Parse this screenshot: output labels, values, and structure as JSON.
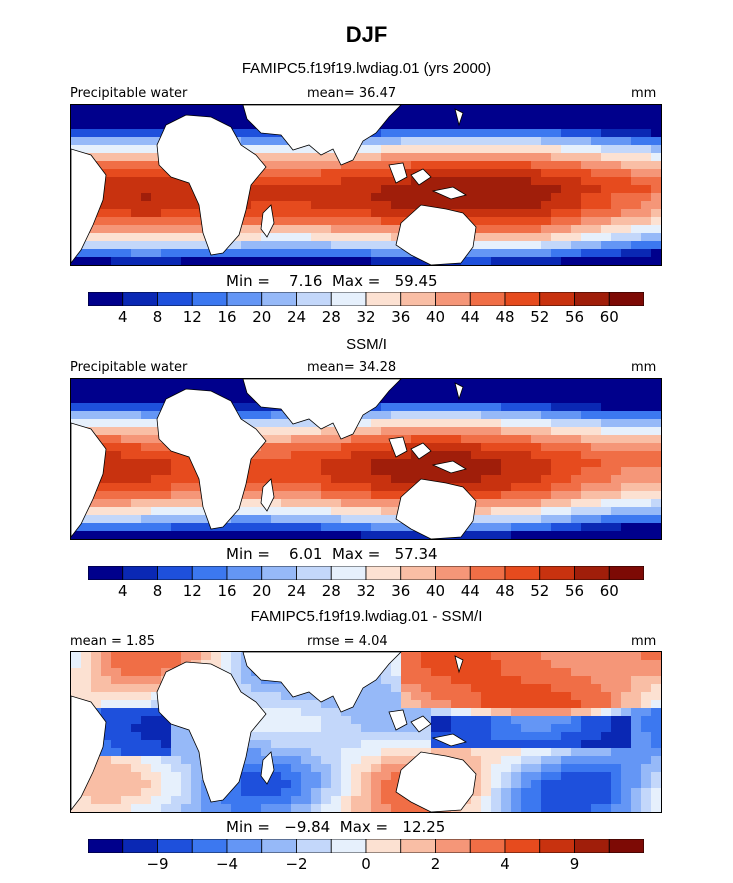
{
  "title": "DJF",
  "colors": {
    "palette": [
      "#00008c",
      "#0a28b4",
      "#1e50dc",
      "#3c78f0",
      "#6496f5",
      "#96b9f8",
      "#c3d7fa",
      "#e6f0fc",
      "#fce1d2",
      "#f9bea5",
      "#f59678",
      "#f06e46",
      "#e64b1e",
      "#c8320f",
      "#a01e0a",
      "#7d0a05"
    ],
    "land": "#ffffff",
    "coast": "#000000"
  },
  "chart_data": [
    {
      "type": "heatmap",
      "name": "model-precipitable-water",
      "subtitle": "FAMIPC5.f19f19.lwdiag.01 (yrs 2000)",
      "left_label": "Precipitable water",
      "center_label": "mean=  36.47",
      "units": "mm",
      "stats": "Min =    7.16  Max =   59.45",
      "colorbar_ticks": [
        "4",
        "8",
        "12",
        "16",
        "20",
        "24",
        "28",
        "32",
        "36",
        "40",
        "44",
        "48",
        "52",
        "56",
        "60"
      ],
      "field": {
        "mean": 36.47,
        "min": 7.16,
        "max": 59.45
      },
      "value_range": [
        4,
        60
      ]
    },
    {
      "type": "heatmap",
      "name": "obs-precipitable-water",
      "subtitle": "SSM/I",
      "left_label": "Precipitable water",
      "center_label": "mean=  34.28",
      "units": "mm",
      "stats": "Min =    6.01  Max =   57.34",
      "colorbar_ticks": [
        "4",
        "8",
        "12",
        "16",
        "20",
        "24",
        "28",
        "32",
        "36",
        "40",
        "44",
        "48",
        "52",
        "56",
        "60"
      ],
      "field": {
        "mean": 34.28,
        "min": 6.01,
        "max": 57.34
      },
      "value_range": [
        4,
        60
      ]
    },
    {
      "type": "heatmap",
      "name": "difference",
      "subtitle": "FAMIPC5.f19f19.lwdiag.01 - SSM/I",
      "left_label": "mean =    1.85",
      "center_label": "rmse =    4.04",
      "units": "mm",
      "stats": "Min =   −9.84  Max =   12.25",
      "colorbar_ticks": [
        "−9",
        "−4",
        "−2",
        "0",
        "2",
        "4",
        "9"
      ],
      "field": {
        "mean": 1.85,
        "rmse": 4.04,
        "min": -9.84,
        "max": 12.25
      }
    }
  ]
}
